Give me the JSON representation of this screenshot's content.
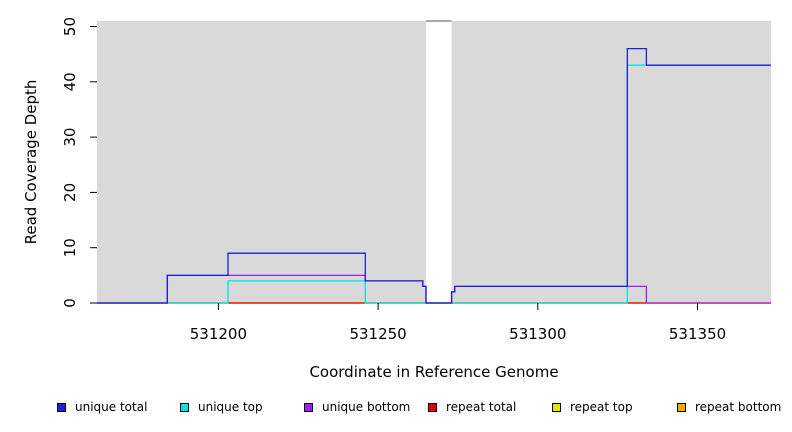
{
  "chart_data": {
    "type": "line",
    "style": "step",
    "xlabel": "Coordinate in Reference Genome",
    "ylabel": "Read Coverage Depth",
    "xlim": [
      531162,
      531373
    ],
    "ylim": [
      0,
      51
    ],
    "xticks": [
      531200,
      531250,
      531300,
      531350
    ],
    "yticks": [
      0,
      10,
      20,
      30,
      40,
      50
    ],
    "background_color": "#d9d9d9",
    "gap": [
      531265,
      531273
    ],
    "legend_position": "bottom",
    "series": [
      {
        "name": "unique total",
        "color": "#1f1fd8",
        "x": [
          531162,
          531184,
          531184,
          531203,
          531203,
          531246,
          531246,
          531264,
          531264,
          531265,
          531265,
          531273,
          531273,
          531274,
          531274,
          531328,
          531328,
          531334,
          531334,
          531373
        ],
        "y": [
          0,
          0,
          5,
          5,
          9,
          9,
          4,
          4,
          3,
          3,
          0,
          0,
          2,
          2,
          3,
          3,
          46,
          46,
          43,
          43
        ]
      },
      {
        "name": "unique top",
        "color": "#00e5e5",
        "x": [
          531162,
          531203,
          531203,
          531246,
          531246,
          531328,
          531328,
          531373
        ],
        "y": [
          0,
          0,
          4,
          4,
          0,
          0,
          43,
          43
        ]
      },
      {
        "name": "unique bottom",
        "color": "#a020f0",
        "x": [
          531162,
          531184,
          531184,
          531203,
          531203,
          531246,
          531246,
          531264,
          531264,
          531265,
          531265,
          531273,
          531273,
          531274,
          531274,
          531328,
          531328,
          531334,
          531334,
          531373
        ],
        "y": [
          0,
          0,
          5,
          5,
          5,
          5,
          4,
          4,
          3,
          3,
          0,
          0,
          2,
          2,
          3,
          3,
          3,
          3,
          0,
          0
        ]
      },
      {
        "name": "repeat total",
        "color": "#e00000",
        "x": [
          531162,
          531373
        ],
        "y": [
          0,
          0
        ]
      },
      {
        "name": "repeat top",
        "color": "#e5e500",
        "x": [
          531162,
          531373
        ],
        "y": [
          0,
          0
        ]
      },
      {
        "name": "repeat bottom",
        "color": "#ffa500",
        "x": [
          531162,
          531373
        ],
        "y": [
          0,
          0
        ]
      }
    ]
  }
}
